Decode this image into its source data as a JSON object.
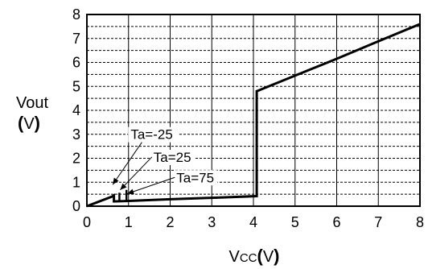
{
  "chart_data": {
    "type": "line",
    "xlim": [
      0,
      8
    ],
    "ylim": [
      0,
      8
    ],
    "x_ticks": [
      "0",
      "1",
      "2",
      "3",
      "4",
      "5",
      "6",
      "7",
      "8"
    ],
    "y_ticks": [
      "0",
      "1",
      "2",
      "3",
      "4",
      "5",
      "6",
      "7",
      "8"
    ],
    "grid": true,
    "xlabel": {
      "main": "V",
      "sub": "CC",
      "open": "(",
      "unit": "V",
      "close": ")"
    },
    "ylabel": {
      "line1": "Vout",
      "open": "(",
      "unit": "V",
      "close": ")"
    },
    "series": [
      {
        "values": [
          {
            "x": 0,
            "y": 0
          },
          {
            "x": 0.6,
            "y": 0.4
          },
          {
            "x": 0.65,
            "y": 0.45
          },
          {
            "x": 0.65,
            "y": 0.2
          },
          {
            "x": 1.0,
            "y": 0.22
          },
          {
            "x": 2.0,
            "y": 0.29
          },
          {
            "x": 3.0,
            "y": 0.35
          },
          {
            "x": 4.08,
            "y": 0.42
          },
          {
            "x": 4.08,
            "y": 4.8
          },
          {
            "x": 5.0,
            "y": 5.45
          },
          {
            "x": 6.0,
            "y": 6.15
          },
          {
            "x": 7.0,
            "y": 6.88
          },
          {
            "x": 8.0,
            "y": 7.6
          }
        ]
      },
      {
        "values": [
          {
            "x": 0.78,
            "y": 0.2
          },
          {
            "x": 0.78,
            "y": 0.56
          }
        ]
      },
      {
        "values": [
          {
            "x": 0.95,
            "y": 0.22
          },
          {
            "x": 0.95,
            "y": 0.68
          }
        ]
      }
    ],
    "annotations": [
      {
        "text": "Ta=-25",
        "x": 1.05,
        "y": 2.8,
        "arrow_to": {
          "x": 0.62,
          "y": 0.9
        }
      },
      {
        "text": "Ta=25",
        "x": 1.6,
        "y": 1.85,
        "arrow_to": {
          "x": 0.8,
          "y": 0.68
        }
      },
      {
        "text": "Ta=75",
        "x": 2.15,
        "y": 1.0,
        "arrow_to": {
          "x": 0.97,
          "y": 0.52
        }
      }
    ]
  }
}
